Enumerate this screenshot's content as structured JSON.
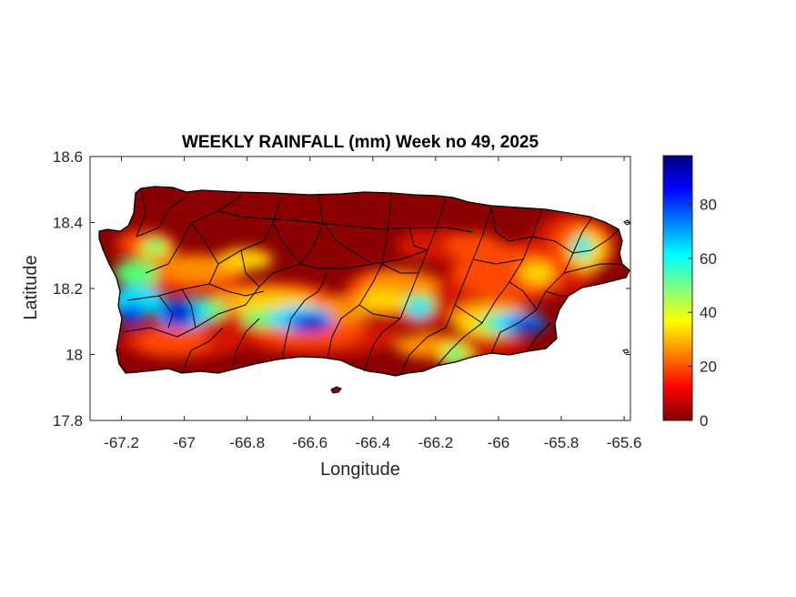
{
  "title": "WEEKLY RAINFALL (mm) Week no 49, 2025",
  "xlabel": "Longitude",
  "ylabel": "Latitude",
  "x_ticks": [
    "-67.2",
    "-67",
    "-66.8",
    "-66.6",
    "-66.4",
    "-66.2",
    "-66",
    "-65.8",
    "-65.6"
  ],
  "y_ticks": [
    "18.6",
    "18.4",
    "18.2",
    "18",
    "17.8"
  ],
  "colorbar_ticks": [
    "80",
    "60",
    "40",
    "20",
    "0"
  ],
  "chart_data": {
    "type": "heatmap",
    "title": "WEEKLY RAINFALL (mm) Week no 49, 2025",
    "xlabel": "Longitude",
    "ylabel": "Latitude",
    "xlim": [
      -67.3,
      -65.58
    ],
    "ylim": [
      17.8,
      18.6
    ],
    "colormap": "jet",
    "color_range": [
      0,
      98
    ],
    "colorbar_ticks": [
      0,
      20,
      40,
      60,
      80
    ],
    "grid": false,
    "rainfall_maxima": [
      {
        "lon": -67.05,
        "lat": 18.12,
        "value": 92
      },
      {
        "lon": -67.19,
        "lat": 18.12,
        "value": 85
      },
      {
        "lon": -66.58,
        "lat": 18.09,
        "value": 92
      },
      {
        "lon": -65.92,
        "lat": 18.09,
        "value": 88
      },
      {
        "lon": -66.15,
        "lat": 17.98,
        "value": 45
      },
      {
        "lon": -66.22,
        "lat": 18.13,
        "value": 50
      },
      {
        "lon": -66.82,
        "lat": 18.28,
        "value": 45
      },
      {
        "lon": -67.1,
        "lat": 18.2,
        "value": 55
      },
      {
        "lon": -65.75,
        "lat": 18.3,
        "value": 50
      }
    ]
  }
}
